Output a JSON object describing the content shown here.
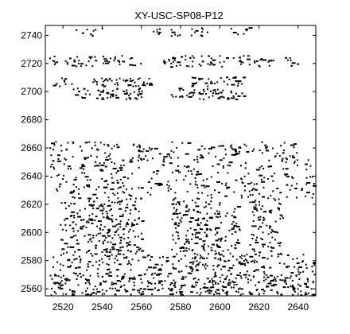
{
  "chart_data": {
    "type": "scatter",
    "title": "XY-USC-SP08-P12",
    "xlabel": "",
    "ylabel": "",
    "xlim": [
      2511,
      2649
    ],
    "ylim": [
      2555,
      2747
    ],
    "xticks": [
      2520,
      2540,
      2560,
      2580,
      2600,
      2620,
      2640
    ],
    "yticks": [
      2560,
      2580,
      2600,
      2620,
      2640,
      2660,
      2680,
      2700,
      2720,
      2740
    ],
    "grid": false,
    "legend": "none",
    "marker": "point",
    "point_color": "#000000",
    "seed": 1208,
    "density_bands": [
      {
        "y_range": [
          2740,
          2746
        ],
        "x_ranges": [
          [
            2525,
            2540
          ],
          [
            2565,
            2595
          ],
          [
            2605,
            2615
          ]
        ],
        "count": 40
      },
      {
        "y_range": [
          2718,
          2726
        ],
        "x_ranges": [
          [
            2513,
            2560
          ],
          [
            2570,
            2640
          ]
        ],
        "count": 130
      },
      {
        "y_range": [
          2704,
          2711
        ],
        "x_ranges": [
          [
            2513,
            2525
          ],
          [
            2535,
            2565
          ],
          [
            2585,
            2615
          ]
        ],
        "count": 90
      },
      {
        "y_range": [
          2695,
          2703
        ],
        "x_ranges": [
          [
            2525,
            2560
          ],
          [
            2575,
            2612
          ]
        ],
        "count": 110
      },
      {
        "y_range": [
          2652,
          2665
        ],
        "x_ranges": [
          [
            2513,
            2550
          ],
          [
            2555,
            2640
          ]
        ],
        "count": 160
      },
      {
        "y_range": [
          2625,
          2652
        ],
        "x_ranges": [
          [
            2513,
            2648
          ]
        ],
        "count": 280
      },
      {
        "y_range": [
          2585,
          2625
        ],
        "x_ranges": [
          [
            2518,
            2560
          ],
          [
            2575,
            2610
          ],
          [
            2615,
            2632
          ]
        ],
        "count": 520
      },
      {
        "y_range": [
          2572,
          2585
        ],
        "x_ranges": [
          [
            2513,
            2648
          ]
        ],
        "count": 200
      },
      {
        "y_range": [
          2556,
          2572
        ],
        "x_ranges": [
          [
            2513,
            2648
          ]
        ],
        "count": 360
      }
    ]
  }
}
